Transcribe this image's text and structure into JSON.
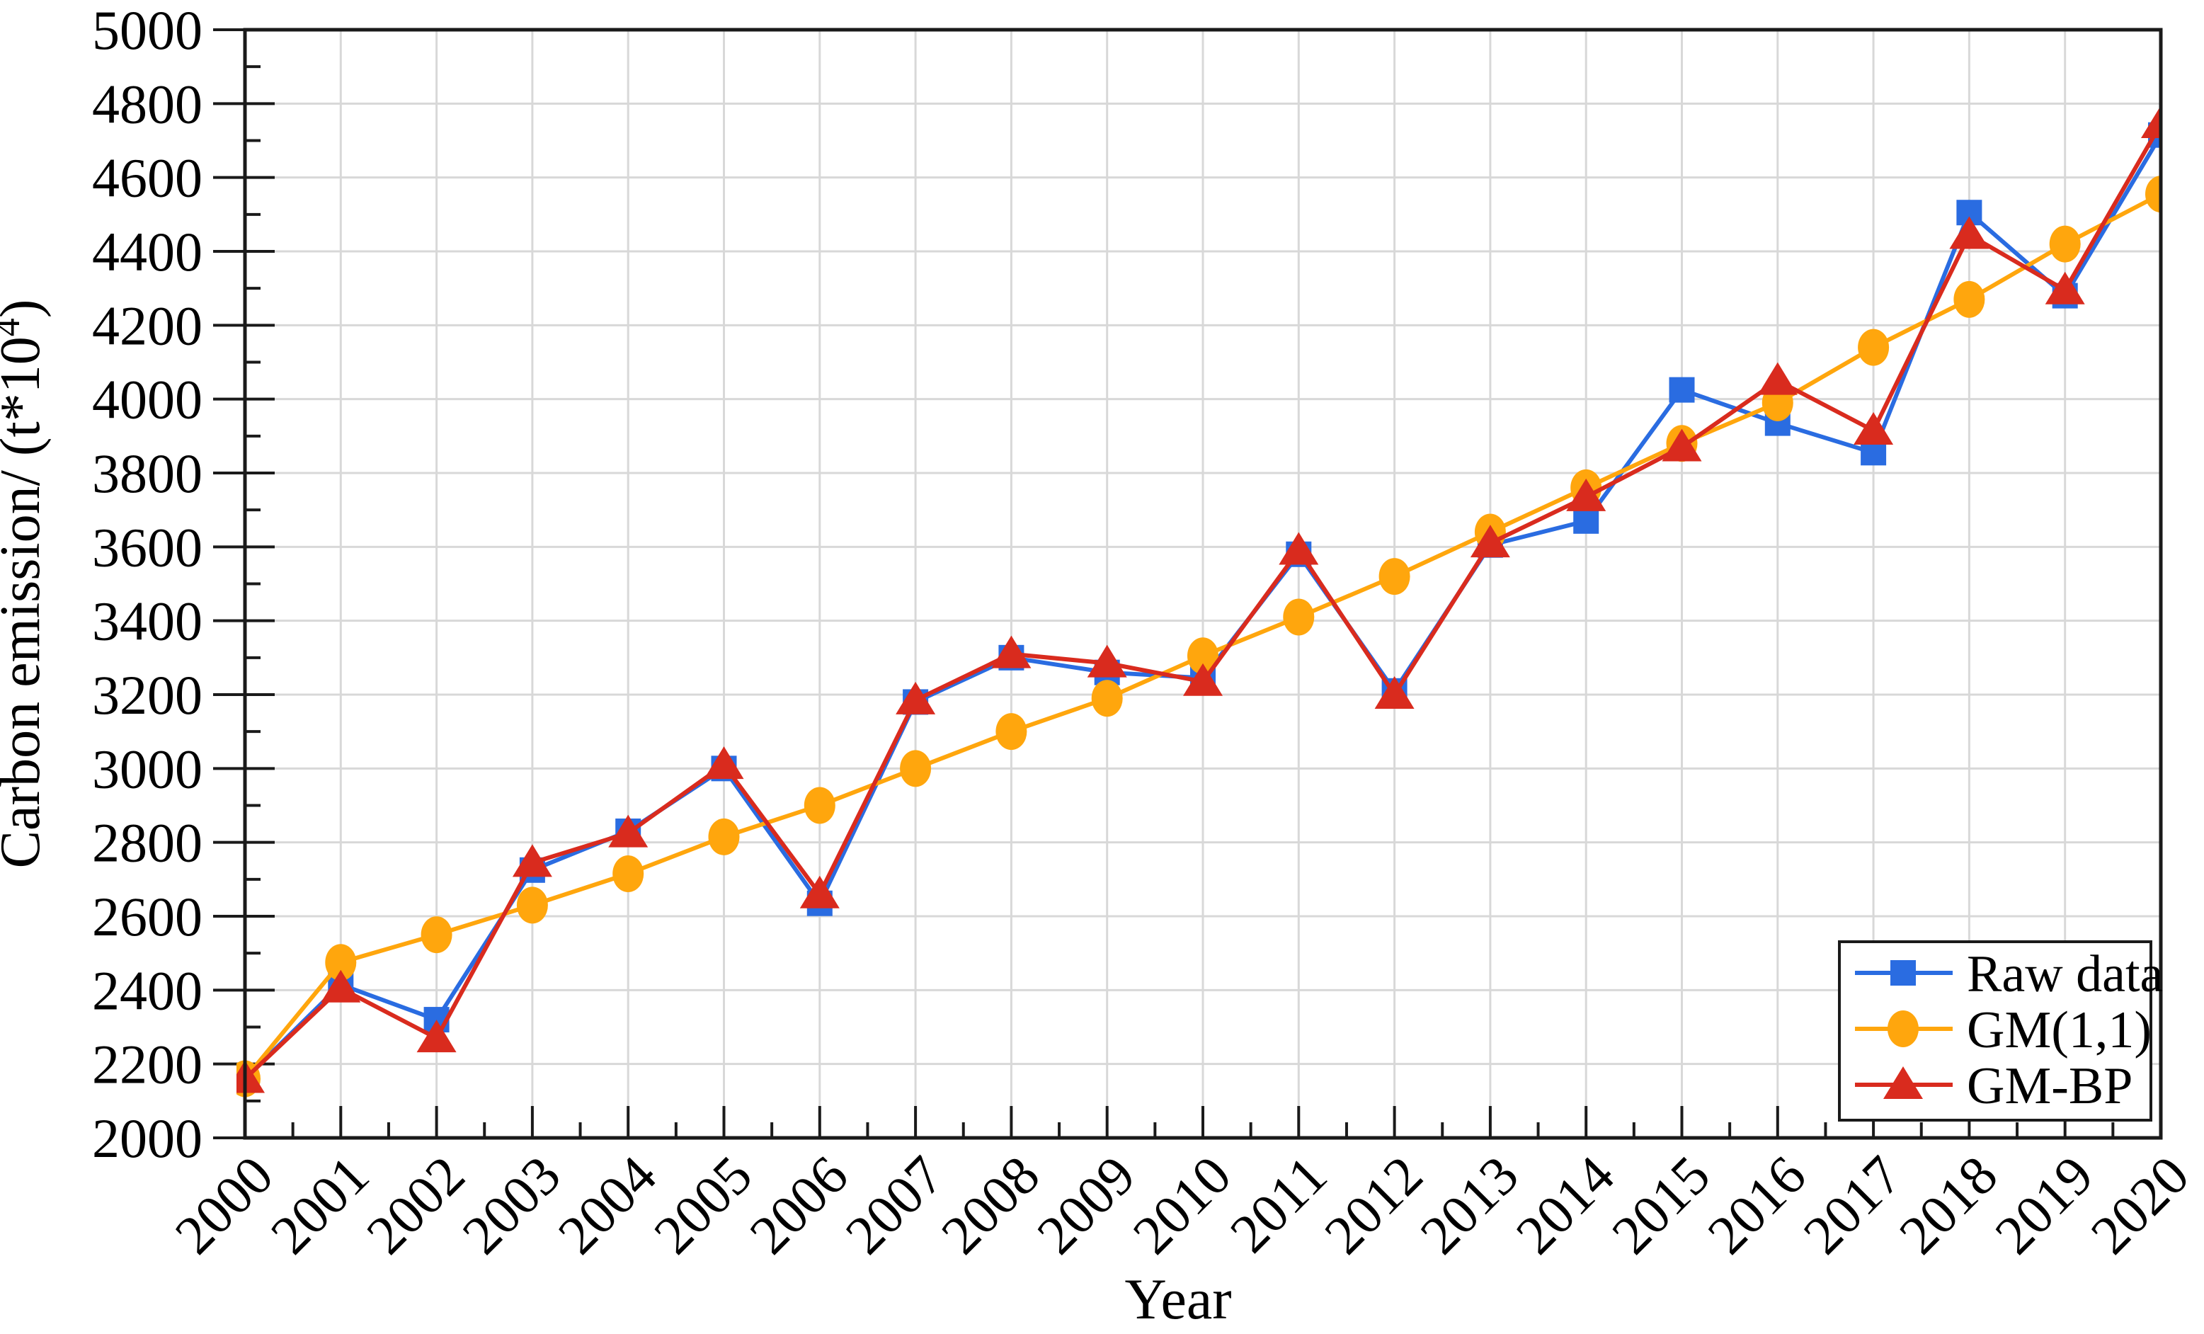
{
  "chart_data": {
    "type": "line",
    "title": "",
    "xlabel": "Year",
    "ylabel": "Carbon emission/ (t*10^4)",
    "ylabel_parts": {
      "prefix": "Carbon emission/ (t*10",
      "superscript": "4",
      "suffix": ")"
    },
    "x": [
      2000,
      2001,
      2002,
      2003,
      2004,
      2005,
      2006,
      2007,
      2008,
      2009,
      2010,
      2011,
      2012,
      2013,
      2014,
      2015,
      2016,
      2017,
      2018,
      2019,
      2020
    ],
    "xlim": [
      2000,
      2020
    ],
    "ylim": [
      2000,
      5000
    ],
    "ytick_step": 200,
    "ytick_minor_step": 100,
    "xtick_step": 1,
    "xtick_minor_step": 0.5,
    "grid": true,
    "legend_position": "bottom-right",
    "series": [
      {
        "name": "Raw data",
        "color": "#2a6ce1",
        "marker": "square",
        "values": [
          2160,
          2415,
          2320,
          2725,
          2830,
          3000,
          2635,
          3180,
          3300,
          3260,
          3245,
          3580,
          3210,
          3605,
          3670,
          4025,
          3935,
          3855,
          4505,
          4280,
          4715
        ]
      },
      {
        "name": "GM(1,1)",
        "color": "#ffa60d",
        "marker": "circle",
        "values": [
          2160,
          2475,
          2550,
          2630,
          2715,
          2815,
          2900,
          3000,
          3100,
          3190,
          3305,
          3410,
          3520,
          3640,
          3760,
          3880,
          3990,
          4140,
          4270,
          4420,
          4555
        ]
      },
      {
        "name": "GM-BP",
        "color": "#d92b1e",
        "marker": "triangle",
        "values": [
          2160,
          2405,
          2270,
          2745,
          2825,
          3010,
          2660,
          3185,
          3310,
          3285,
          3235,
          3590,
          3200,
          3610,
          3735,
          3870,
          4050,
          3915,
          4445,
          4295,
          4745
        ]
      }
    ]
  },
  "axes": {
    "x_tick_labels": [
      "2000",
      "2001",
      "2002",
      "2003",
      "2004",
      "2005",
      "2006",
      "2007",
      "2008",
      "2009",
      "2010",
      "2011",
      "2012",
      "2013",
      "2014",
      "2015",
      "2016",
      "2017",
      "2018",
      "2019",
      "2020"
    ],
    "y_tick_labels": [
      "2000",
      "2200",
      "2400",
      "2600",
      "2800",
      "3000",
      "3200",
      "3400",
      "3600",
      "3800",
      "4000",
      "4200",
      "4400",
      "4600",
      "4800",
      "5000"
    ]
  },
  "legend": {
    "items": [
      {
        "label": "Raw data",
        "color": "#2a6ce1",
        "marker": "square"
      },
      {
        "label": "GM(1,1)",
        "color": "#ffa60d",
        "marker": "circle"
      },
      {
        "label": "GM-BP",
        "color": "#d92b1e",
        "marker": "triangle"
      }
    ]
  },
  "colors": {
    "background": "#ffffff",
    "grid": "#d8d8d8",
    "axis": "#1a1a1a",
    "text": "#000000"
  }
}
